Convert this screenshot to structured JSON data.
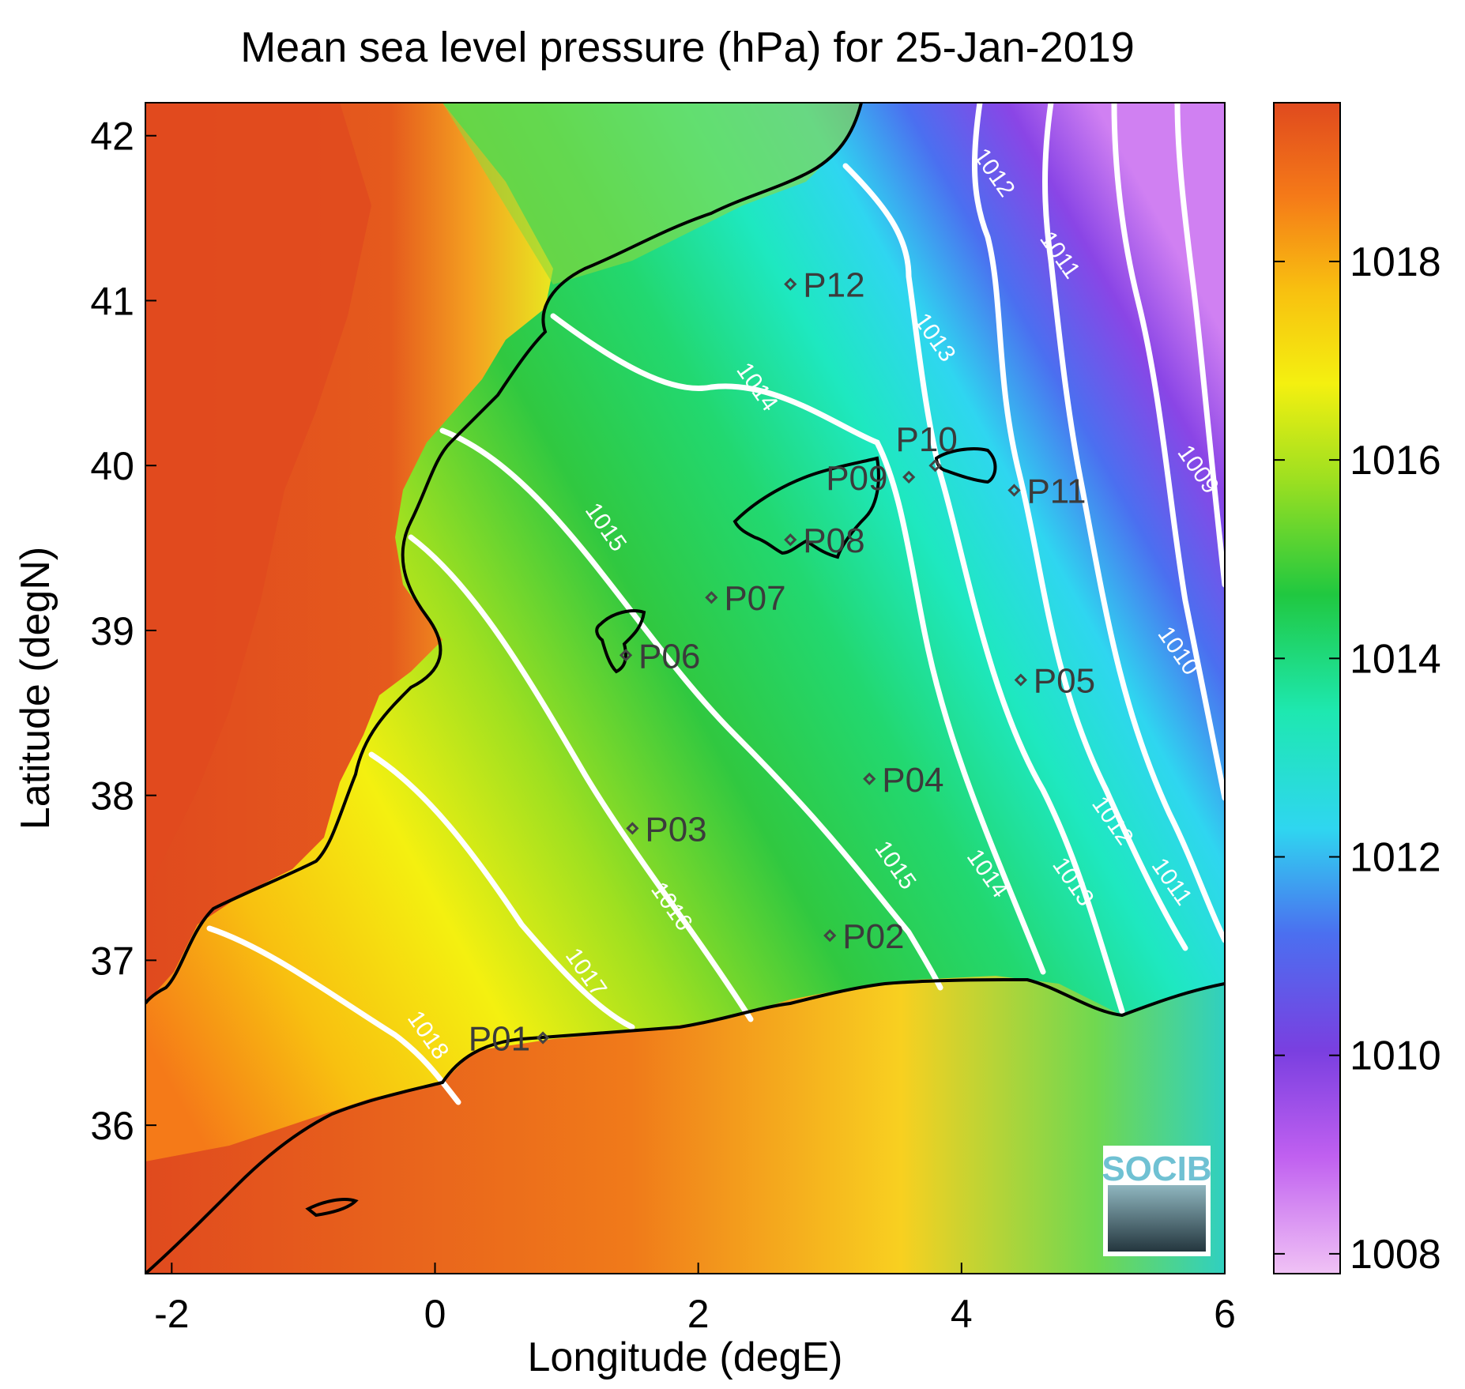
{
  "title": "Mean sea level pressure (hPa) for 25-Jan-2019",
  "x_axis": {
    "label": "Longitude (degE)",
    "range": [
      -2.2,
      6.0
    ],
    "ticks": [
      {
        "v": -2,
        "t": "-2"
      },
      {
        "v": 0,
        "t": "0"
      },
      {
        "v": 2,
        "t": "2"
      },
      {
        "v": 4,
        "t": "4"
      },
      {
        "v": 6,
        "t": "6"
      }
    ]
  },
  "y_axis": {
    "label": "Latitude (degN)",
    "range": [
      35.1,
      42.2
    ],
    "ticks": [
      {
        "v": 36,
        "t": "36"
      },
      {
        "v": 37,
        "t": "37"
      },
      {
        "v": 38,
        "t": "38"
      },
      {
        "v": 39,
        "t": "39"
      },
      {
        "v": 40,
        "t": "40"
      },
      {
        "v": 41,
        "t": "41"
      },
      {
        "v": 42,
        "t": "42"
      }
    ]
  },
  "colorbar": {
    "range": [
      1007.8,
      1019.6
    ],
    "ticks": [
      {
        "v": 1008,
        "t": "1008"
      },
      {
        "v": 1010,
        "t": "1010"
      },
      {
        "v": 1012,
        "t": "1012"
      },
      {
        "v": 1014,
        "t": "1014"
      },
      {
        "v": 1016,
        "t": "1016"
      },
      {
        "v": 1018,
        "t": "1018"
      }
    ],
    "colors": [
      "#f0c2f5",
      "#c060f0",
      "#7a3fe0",
      "#4b6ff0",
      "#2fd6f0",
      "#1ee8b0",
      "#20c840",
      "#9fe020",
      "#f4f010",
      "#f8c010",
      "#f57a18",
      "#e04a1e"
    ]
  },
  "stations": [
    {
      "id": "P01",
      "label": "P01",
      "lon": 0.82,
      "lat": 36.53
    },
    {
      "id": "P02",
      "label": "P02",
      "lon": 3.0,
      "lat": 37.15
    },
    {
      "id": "P03",
      "label": "P03",
      "lon": 1.5,
      "lat": 37.8
    },
    {
      "id": "P04",
      "label": "P04",
      "lon": 3.3,
      "lat": 38.1
    },
    {
      "id": "P05",
      "label": "P05",
      "lon": 4.45,
      "lat": 38.7
    },
    {
      "id": "P06",
      "label": "P06",
      "lon": 1.45,
      "lat": 38.85
    },
    {
      "id": "P07",
      "label": "P07",
      "lon": 2.1,
      "lat": 39.2
    },
    {
      "id": "P08",
      "label": "P08",
      "lon": 2.7,
      "lat": 39.55
    },
    {
      "id": "P09",
      "label": "P09",
      "lon": 3.6,
      "lat": 39.93
    },
    {
      "id": "P10",
      "label": "P10",
      "lon": 3.8,
      "lat": 40.0
    },
    {
      "id": "P11",
      "label": "P11",
      "lon": 4.4,
      "lat": 39.85
    },
    {
      "id": "P12",
      "label": "P12",
      "lon": 2.7,
      "lat": 41.1
    }
  ],
  "contour_labels": [
    {
      "t": "1018",
      "lon": -0.1,
      "lat": 36.52
    },
    {
      "t": "1017",
      "lon": 1.1,
      "lat": 36.9
    },
    {
      "t": "1016",
      "lon": 1.75,
      "lat": 37.3
    },
    {
      "t": "1015",
      "lon": 3.45,
      "lat": 37.55
    },
    {
      "t": "1014",
      "lon": 4.15,
      "lat": 37.5
    },
    {
      "t": "1013",
      "lon": 4.8,
      "lat": 37.45
    },
    {
      "t": "1012",
      "lon": 5.1,
      "lat": 37.82
    },
    {
      "t": "1011",
      "lon": 5.55,
      "lat": 37.45
    },
    {
      "t": "1010",
      "lon": 5.6,
      "lat": 38.85
    },
    {
      "t": "1009",
      "lon": 5.75,
      "lat": 39.95
    },
    {
      "t": "1015",
      "lon": 1.25,
      "lat": 39.6
    },
    {
      "t": "1014",
      "lon": 2.4,
      "lat": 40.45
    },
    {
      "t": "1013",
      "lon": 3.75,
      "lat": 40.75
    },
    {
      "t": "1012",
      "lon": 4.2,
      "lat": 41.75
    },
    {
      "t": "1011",
      "lon": 4.7,
      "lat": 41.25
    }
  ],
  "logo": {
    "text": "SOCIB"
  }
}
